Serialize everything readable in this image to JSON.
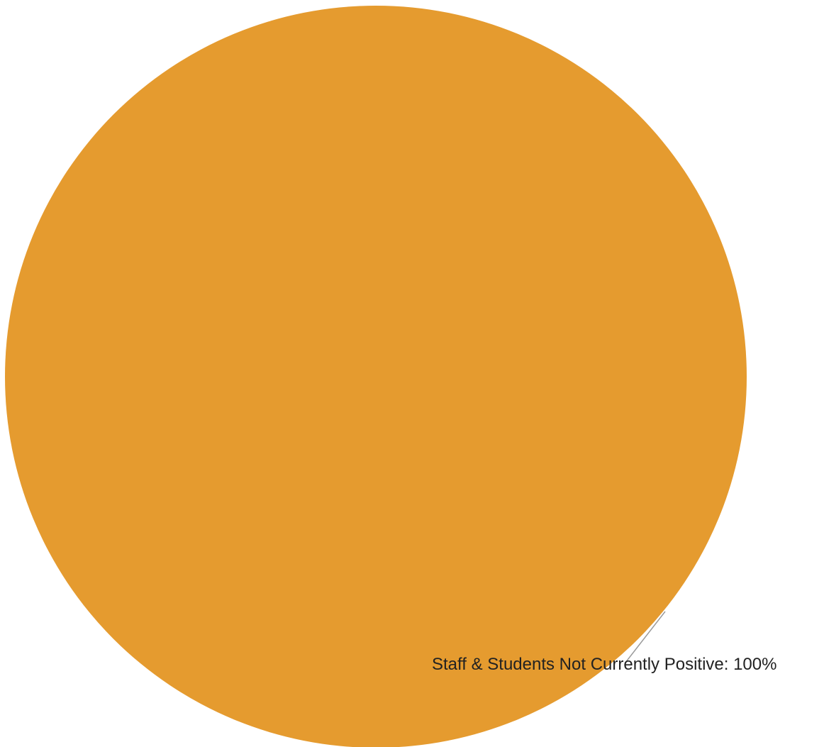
{
  "chart_data": {
    "type": "pie",
    "slices": [
      {
        "label": "Staff & Students Not Currently Positive",
        "value": 100,
        "color": "#e59b2f",
        "data_label": "Staff & Students Not Currently Positive: 100%"
      }
    ]
  }
}
